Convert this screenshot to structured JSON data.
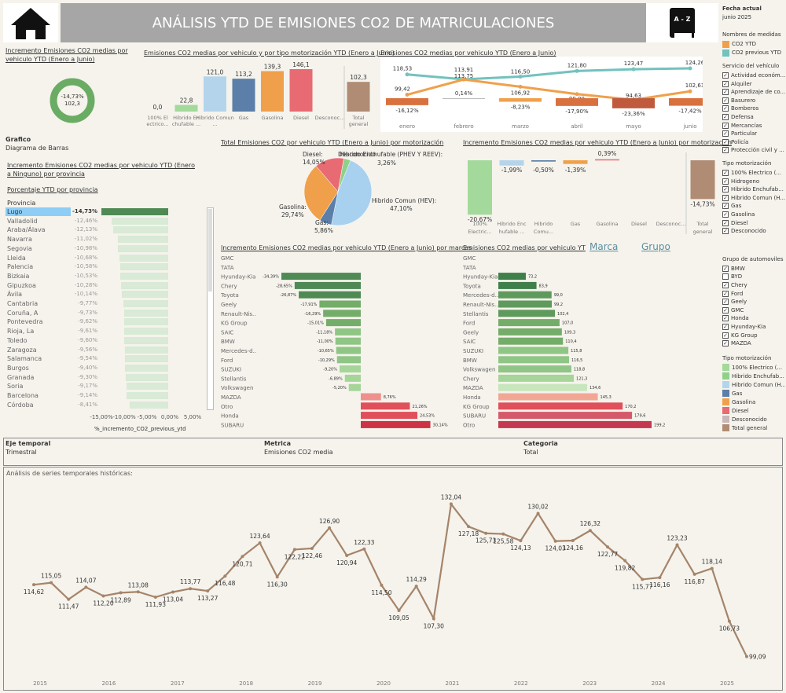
{
  "header": {
    "title": "ANÁLISIS YTD DE EMISIONES CO2 DE  MATRICULACIONES",
    "home_icon": "home-icon",
    "az_icon": "a-z-book-icon",
    "az_label": "A - Z"
  },
  "kpi": {
    "title": "Incremento Emisiones CO2 medias por vehiculo YTD (Enero a Junio)",
    "pct": "-14,73%",
    "val": "102,3"
  },
  "grafico": {
    "title": "Grafico",
    "value": "Diagrama de Barras"
  },
  "left_titles": {
    "inc_title": "Incremento Emisiones CO2 medias por vehiculo YTD (Enero a Ninguno) por provincia",
    "pct_title": "Porcentaje YTD por provincia",
    "prov_header": "Provincia"
  },
  "provincias": [
    {
      "name": "Lugo",
      "label": "-14,73%",
      "v": -14.73
    },
    {
      "name": "Valladolid",
      "label": "-12,46%",
      "v": -12.46
    },
    {
      "name": "Araba/Álava",
      "label": "-12,13%",
      "v": -12.13
    },
    {
      "name": "Navarra",
      "label": "-11,02%",
      "v": -11.02
    },
    {
      "name": "Segovia",
      "label": "-10,98%",
      "v": -10.98
    },
    {
      "name": "Lleida",
      "label": "-10,68%",
      "v": -10.68
    },
    {
      "name": "Palencia",
      "label": "-10,58%",
      "v": -10.58
    },
    {
      "name": "Bizkaia",
      "label": "-10,53%",
      "v": -10.53
    },
    {
      "name": "Gipuzkoa",
      "label": "-10,28%",
      "v": -10.28
    },
    {
      "name": "Ávila",
      "label": "-10,14%",
      "v": -10.14
    },
    {
      "name": "Cantabria",
      "label": "-9,77%",
      "v": -9.77
    },
    {
      "name": "Coruña, A",
      "label": "-9,73%",
      "v": -9.73
    },
    {
      "name": "Pontevedra",
      "label": "-9,62%",
      "v": -9.62
    },
    {
      "name": "Rioja, La",
      "label": "-9,61%",
      "v": -9.61
    },
    {
      "name": "Toledo",
      "label": "-9,60%",
      "v": -9.6
    },
    {
      "name": "Zaragoza",
      "label": "-9,56%",
      "v": -9.56
    },
    {
      "name": "Salamanca",
      "label": "-9,54%",
      "v": -9.54
    },
    {
      "name": "Burgos",
      "label": "-9,40%",
      "v": -9.4
    },
    {
      "name": "Granada",
      "label": "-9,30%",
      "v": -9.3
    },
    {
      "name": "Soria",
      "label": "-9,17%",
      "v": -9.17
    },
    {
      "name": "Barcelona",
      "label": "-9,14%",
      "v": -9.14
    },
    {
      "name": "Córdoba",
      "label": "-8,41%",
      "v": -8.41
    }
  ],
  "prov_axis": {
    "ticks": [
      "-15,00%",
      "-10,00%",
      "-5,00%",
      "0,00%",
      "5,00%"
    ],
    "title": "%_incremento_CO2_previous_ytd"
  },
  "motor_bar": {
    "title": "Emisiones CO2 medias por vehiculo y por tipo motorización YTD (Enero a Junio)",
    "cats": [
      "100% El ectrico...",
      "Hibrido En chufable ...",
      "Hibrido Comun ...",
      "Gas",
      "Gasolina",
      "Diesel",
      "Desconoc...",
      "Total general"
    ],
    "labels": [
      "0,0",
      "22,8",
      "121,0",
      "113,2",
      "139,3",
      "146,1",
      "",
      "102,3"
    ],
    "values": [
      0,
      22.8,
      121.0,
      113.2,
      139.3,
      146.1,
      0,
      102.3
    ],
    "colors": [
      "#a3d99b",
      "#a3d99b",
      "#b4d4ec",
      "#5b7fa8",
      "#f0a04b",
      "#e86b73",
      "#cccccc",
      "#b08c74"
    ]
  },
  "monthly": {
    "title": "Emisiones CO2 medias por vehiculo YTD (Enero a Junio)",
    "months": [
      "enero",
      "febrero",
      "marzo",
      "abril",
      "mayo",
      "junio"
    ],
    "co2_ytd": [
      99.42,
      113.75,
      106.92,
      99.99,
      94.63,
      102.61
    ],
    "co2_ytd_labels": [
      "99,42",
      "113,75",
      "106,92",
      "99,99",
      "94,63",
      "102,61"
    ],
    "co2_prev": [
      118.53,
      113.91,
      116.5,
      121.8,
      123.47,
      124.26
    ],
    "co2_prev_labels": [
      "118,53",
      "113,91",
      "116,50",
      "121,80",
      "123,47",
      "124,26"
    ],
    "pct": [
      -16.12,
      0.14,
      -8.23,
      -17.9,
      -23.36,
      -17.42
    ],
    "pct_labels": [
      "-16,12%",
      "0,14%",
      "-8,23%",
      "-17,90%",
      "-23,36%",
      "-17,42%"
    ]
  },
  "pie": {
    "title": "Total Emisiones CO2 por vehiculo YTD (Enero a Junio) por motorización",
    "slices": [
      {
        "name": "Hibrido Comun (HEV)",
        "pct": 47.1,
        "label": "Hibrido Comun (HEV): 47,10%",
        "color": "#a8d0ef"
      },
      {
        "name": "Gas",
        "pct": 5.86,
        "label": "Gas: 5,86%",
        "color": "#5b7fa8"
      },
      {
        "name": "Gasolina",
        "pct": 29.74,
        "label": "Gasolina: 29,74%",
        "color": "#f0a04b"
      },
      {
        "name": "Diesel",
        "pct": 14.05,
        "label": "Diesel: 14,05%",
        "color": "#e86b73"
      },
      {
        "name": "Desconocido",
        "pct": 0.0,
        "label": "Desconocido",
        "color": "#cccccc"
      },
      {
        "name": "Hibrido Enchufable (PHEV Y REEV)",
        "pct": 3.26,
        "label": "Hibrido Enchufable (PHEV Y REEV): 3,26%",
        "color": "#8fd18a"
      }
    ]
  },
  "inc_motor": {
    "title": "Incremento Emisiones CO2 medias por vehiculo YTD (Enero a Junio) por motorización",
    "cats": [
      "100% Electric...",
      "Hibrido Enc hufable ...",
      "Hibrido Comu...",
      "Gas",
      "Gasolina",
      "Diesel",
      "Desconoc...",
      "Total general"
    ],
    "values": [
      -20.67,
      -1.99,
      -0.5,
      -1.39,
      0.39,
      0,
      0,
      -14.73
    ],
    "labels": [
      "-20,67%",
      "-1,99%",
      "-0,50%",
      "-1,39%",
      "0,39%",
      "",
      "",
      "-14,73%"
    ],
    "colors": [
      "#a3d99b",
      "#b4d4ec",
      "#5b7fa8",
      "#f0a04b",
      "#e86b73",
      "#cccccc",
      "#cccccc",
      "#b08c74"
    ]
  },
  "marcas_inc": {
    "title": "Incremento Emisiones CO2 medias por vehiculo YTD (Enero a Junio) por marcas",
    "rows": [
      {
        "n": "GMC",
        "v": 0,
        "l": ""
      },
      {
        "n": "TATA",
        "v": 0,
        "l": ""
      },
      {
        "n": "Hyunday-Kia",
        "v": -34.39,
        "l": "-34,39%"
      },
      {
        "n": "Chery",
        "v": -28.65,
        "l": "-28,65%"
      },
      {
        "n": "Toyota",
        "v": -26.87,
        "l": "-26,87%"
      },
      {
        "n": "Geely",
        "v": -17.91,
        "l": "-17,91%"
      },
      {
        "n": "Renault-Nis..",
        "v": -16.29,
        "l": "-16,29%"
      },
      {
        "n": "KG Group",
        "v": -15.01,
        "l": "-15,01%"
      },
      {
        "n": "SAIC",
        "v": -11.18,
        "l": "-11,18%"
      },
      {
        "n": "BMW",
        "v": -11.0,
        "l": "-11,00%"
      },
      {
        "n": "Mercedes-d..",
        "v": -10.65,
        "l": "-10,65%"
      },
      {
        "n": "Ford",
        "v": -10.29,
        "l": "-10,29%"
      },
      {
        "n": "SUZUKI",
        "v": -9.2,
        "l": "-9,20%"
      },
      {
        "n": "Stellantis",
        "v": -6.89,
        "l": "-6,89%"
      },
      {
        "n": "Volkswagen",
        "v": -5.2,
        "l": "-5,20%"
      },
      {
        "n": "MAZDA",
        "v": 8.76,
        "l": "8,76%"
      },
      {
        "n": "Otro",
        "v": 21.26,
        "l": "21,26%"
      },
      {
        "n": "Honda",
        "v": 24.53,
        "l": "24,53%"
      },
      {
        "n": "SUBARU",
        "v": 30.14,
        "l": "30,14%"
      }
    ]
  },
  "marcas_em": {
    "title": "Emisiones CO2 medias por vehiculo YT",
    "link_marca": "Marca",
    "link_grupo": "Grupo",
    "rows": [
      {
        "n": "GMC",
        "v": 0,
        "l": ""
      },
      {
        "n": "TATA",
        "v": 0,
        "l": ""
      },
      {
        "n": "Hyunday-Kia",
        "v": 73.2,
        "l": "73,2"
      },
      {
        "n": "Toyota",
        "v": 83.9,
        "l": "83,9"
      },
      {
        "n": "Mercedes-d..",
        "v": 99.0,
        "l": "99,0"
      },
      {
        "n": "Renault-Nis..",
        "v": 99.2,
        "l": "99,2"
      },
      {
        "n": "Stellantis",
        "v": 102.4,
        "l": "102,4"
      },
      {
        "n": "Ford",
        "v": 107.0,
        "l": "107,0"
      },
      {
        "n": "Geely",
        "v": 109.3,
        "l": "109,3"
      },
      {
        "n": "SAIC",
        "v": 110.4,
        "l": "110,4"
      },
      {
        "n": "SUZUKI",
        "v": 115.8,
        "l": "115,8"
      },
      {
        "n": "BMW",
        "v": 116.5,
        "l": "116,5"
      },
      {
        "n": "Volkswagen",
        "v": 118.8,
        "l": "118,8"
      },
      {
        "n": "Chery",
        "v": 121.3,
        "l": "121,3"
      },
      {
        "n": "MAZDA",
        "v": 134.6,
        "l": "134,6"
      },
      {
        "n": "Honda",
        "v": 145.3,
        "l": "145,3"
      },
      {
        "n": "KG Group",
        "v": 170.2,
        "l": "170,2"
      },
      {
        "n": "SUBARU",
        "v": 179.6,
        "l": "179,6"
      },
      {
        "n": "Otro",
        "v": 199.2,
        "l": "199,2"
      }
    ]
  },
  "right_panel": {
    "fecha_title": "Fecha actual",
    "fecha": "junio 2025",
    "medidas_title": "Nombres de medidas",
    "medidas": [
      {
        "n": "CO2 YTD",
        "c": "#f0a04b"
      },
      {
        "n": "CO2 previous YTD",
        "c": "#72c2bd"
      }
    ],
    "servicio_title": "Servicio del vehículo",
    "servicio": [
      "Actividad económ...",
      "Alquiler",
      "Aprendizaje de co...",
      "Basurero",
      "Bomberos",
      "Defensa",
      "Mercancías",
      "Particular",
      "Policía",
      "Protección civil y ..."
    ],
    "motor_title": "Tipo motorización",
    "motor": [
      "100% Electrico (...",
      "Hidrogeno",
      "Hibrido Enchufab...",
      "Hibrido Comun (H...",
      "Gas",
      "Gasolina",
      "Diesel",
      "Desconocido"
    ],
    "grupo_title": "Grupo de automoviles",
    "grupo": [
      {
        "n": "BMW",
        "c": true
      },
      {
        "n": "BYD",
        "c": false
      },
      {
        "n": "Chery",
        "c": true
      },
      {
        "n": "Ford",
        "c": true
      },
      {
        "n": "Geely",
        "c": true
      },
      {
        "n": "GMC",
        "c": true
      },
      {
        "n": "Honda",
        "c": true
      },
      {
        "n": "Hyunday-Kia",
        "c": true
      },
      {
        "n": "KG Group",
        "c": true
      },
      {
        "n": "MAZDA",
        "c": true
      }
    ],
    "legend_title": "Tipo motorización",
    "legend": [
      {
        "n": "100% Electrico (...",
        "c": "#a3d99b"
      },
      {
        "n": "Hibrido Enchufab...",
        "c": "#8fd18a"
      },
      {
        "n": "Hibrido Comun (H...",
        "c": "#b4d4ec"
      },
      {
        "n": "Gas",
        "c": "#5b7fa8"
      },
      {
        "n": "Gasolina",
        "c": "#f0a04b"
      },
      {
        "n": "Diesel",
        "c": "#e86b73"
      },
      {
        "n": "Desconocido",
        "c": "#c9b8b8"
      },
      {
        "n": "Total general",
        "c": "#b08c74"
      }
    ]
  },
  "params": {
    "eje_title": "Eje temporal",
    "eje": "Trimestral",
    "metrica_title": "Metrica",
    "metrica": "Emisiones CO2 media",
    "categoria_title": "Categoria",
    "categoria": "Total"
  },
  "chart_data": {
    "type": "line",
    "title": "Análisis de series temporales históricas:",
    "color": "#a5846a",
    "years": [
      "2015",
      "2016",
      "2017",
      "2018",
      "2019",
      "2020",
      "2021",
      "2022",
      "2023",
      "2024",
      "2025"
    ],
    "values": [
      114.62,
      115.05,
      111.47,
      114.07,
      112.2,
      112.89,
      113.08,
      111.93,
      113.04,
      113.77,
      113.27,
      116.48,
      120.71,
      123.64,
      116.3,
      122.22,
      122.46,
      126.9,
      120.94,
      122.33,
      114.5,
      109.05,
      114.29,
      107.3,
      132.04,
      127.18,
      125.73,
      125.58,
      124.13,
      130.02,
      124.03,
      124.16,
      126.32,
      122.77,
      119.82,
      115.77,
      116.16,
      123.23,
      116.87,
      118.14,
      106.73,
      99.09
    ],
    "labels": [
      "114,62",
      "115,05",
      "111,47",
      "114,07",
      "112,20",
      "112,89",
      "113,08",
      "111,93",
      "113,04",
      "113,77",
      "113,27",
      "116,48",
      "120,71",
      "123,64",
      "116,30",
      "122,22",
      "122,46",
      "126,90",
      "120,94",
      "122,33",
      "114,50",
      "109,05",
      "114,29",
      "107,30",
      "132,04",
      "127,18",
      "125,73",
      "125,58",
      "124,13",
      "130,02",
      "124,03",
      "124,16",
      "126,32",
      "122,77",
      "119,82",
      "115,77",
      "116,16",
      "123,23",
      "116,87",
      "118,14",
      "106,73",
      "99,09"
    ],
    "ylim": [
      97,
      134
    ]
  }
}
